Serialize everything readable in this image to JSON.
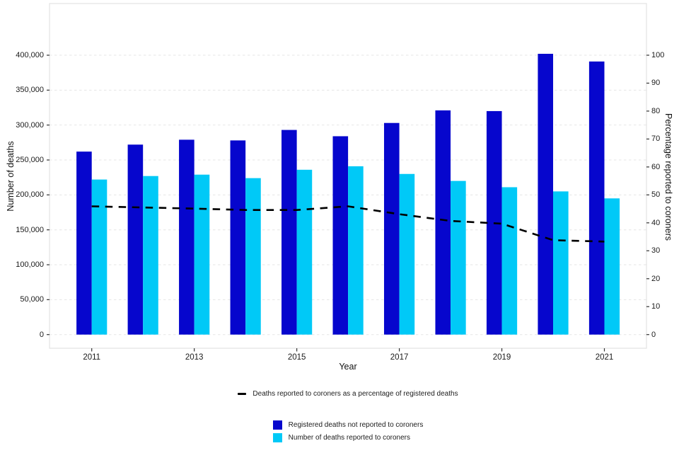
{
  "chart_data": {
    "type": "bar",
    "subtype": "grouped bars with dashed line on secondary axis",
    "title": "",
    "categories": [
      2011,
      2012,
      2013,
      2014,
      2015,
      2016,
      2017,
      2018,
      2019,
      2020,
      2021
    ],
    "series": [
      {
        "name": "Registered deaths not reported to coroners",
        "type": "bar",
        "axis": "left",
        "color": "#0606cd",
        "values": [
          262000,
          272000,
          279000,
          278000,
          293000,
          284000,
          303000,
          321000,
          320000,
          402000,
          391000
        ]
      },
      {
        "name": "Number of deaths reported to coroners",
        "type": "bar",
        "axis": "left",
        "color": "#00c9f7",
        "values": [
          222000,
          227000,
          229000,
          224000,
          236000,
          241000,
          230000,
          220000,
          211000,
          205000,
          195000
        ]
      },
      {
        "name": "Deaths reported to coroners as a percentage of registered deaths",
        "type": "line",
        "axis": "right",
        "color": "#000000",
        "style": "dashed",
        "values": [
          45.9,
          45.5,
          45.1,
          44.6,
          44.6,
          45.9,
          43.1,
          40.7,
          39.7,
          33.8,
          33.3
        ]
      }
    ],
    "xlabel": "Year",
    "ylabel_left": "Number of deaths",
    "ylabel_right": "Percentage reported to coroners",
    "ylim_left": [
      0,
      400000
    ],
    "ylim_right": [
      0,
      100
    ],
    "y_left_tick_values": [
      0,
      50000,
      100000,
      150000,
      200000,
      250000,
      300000,
      350000,
      400000
    ],
    "y_left_tick_labels": [
      "0",
      "50,000",
      "100,000",
      "150,000",
      "200,000",
      "250,000",
      "300,000",
      "350,000",
      "400,000"
    ],
    "y_right_tick_values": [
      0,
      10,
      20,
      30,
      40,
      50,
      60,
      70,
      80,
      90,
      100
    ],
    "y_right_tick_labels": [
      "0",
      "10",
      "20",
      "30",
      "40",
      "50",
      "60",
      "70",
      "80",
      "90",
      "100"
    ],
    "x_tick_labels": [
      "2011",
      "2013",
      "2015",
      "2017",
      "2019",
      "2021"
    ],
    "x_tick_indices": [
      0,
      2,
      4,
      6,
      8,
      10
    ],
    "grid": "horizontal light-gray dashed lines at left-axis ticks",
    "legend_position": "bottom centered",
    "grid_color": "#e6e6e6",
    "panel_border_color": "#e2e2e2"
  },
  "legend": {
    "line_label": "Deaths reported to coroners as a percentage of registered deaths",
    "bars": [
      {
        "label": "Registered deaths not reported to coroners",
        "color": "#0606cd"
      },
      {
        "label": "Number of deaths reported to coroners",
        "color": "#00c9f7"
      }
    ]
  }
}
